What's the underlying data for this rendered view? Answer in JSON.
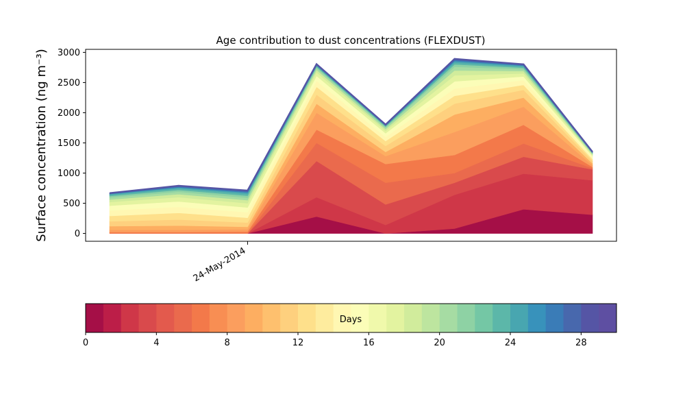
{
  "chart_data": {
    "type": "area",
    "stacked": true,
    "title": "Age contribution to dust concentrations (FLEXDUST)",
    "ylabel": "Surface concentration (ng m⁻³)",
    "xlabel": "",
    "ylim": [
      -130,
      3050
    ],
    "yticks": [
      0,
      500,
      1000,
      1500,
      2000,
      2500,
      3000
    ],
    "x_tick_labels": [
      {
        "index": 2,
        "label": "24-May-2014"
      }
    ],
    "x_count": 8,
    "series_cumulative_tops": [
      [
        0,
        0,
        0,
        280,
        0,
        80,
        400,
        310
      ],
      [
        0,
        0,
        0,
        600,
        140,
        640,
        990,
        880
      ],
      [
        0,
        0,
        0,
        1200,
        480,
        840,
        1270,
        1060
      ],
      [
        0,
        0,
        0,
        1500,
        840,
        1000,
        1490,
        1080
      ],
      [
        20,
        20,
        30,
        1720,
        1150,
        1300,
        1800,
        1100
      ],
      [
        60,
        60,
        70,
        2000,
        1280,
        1680,
        2100,
        1130
      ],
      [
        120,
        130,
        110,
        2150,
        1350,
        1970,
        2250,
        1160
      ],
      [
        200,
        230,
        180,
        2300,
        1450,
        2150,
        2380,
        1200
      ],
      [
        290,
        340,
        260,
        2430,
        1530,
        2280,
        2460,
        1230
      ],
      [
        380,
        440,
        350,
        2530,
        1600,
        2400,
        2540,
        1260
      ],
      [
        460,
        530,
        430,
        2610,
        1660,
        2520,
        2600,
        1280
      ],
      [
        520,
        600,
        500,
        2670,
        1700,
        2620,
        2650,
        1300
      ],
      [
        560,
        650,
        550,
        2710,
        1730,
        2700,
        2690,
        1310
      ],
      [
        595,
        690,
        590,
        2740,
        1755,
        2760,
        2720,
        1320
      ],
      [
        620,
        720,
        625,
        2760,
        1770,
        2800,
        2745,
        1330
      ],
      [
        640,
        745,
        655,
        2775,
        1782,
        2830,
        2765,
        1337
      ],
      [
        652,
        762,
        678,
        2787,
        1790,
        2855,
        2780,
        1342
      ],
      [
        660,
        775,
        693,
        2795,
        1796,
        2872,
        2790,
        1346
      ],
      [
        665,
        784,
        703,
        2801,
        1800,
        2884,
        2797,
        1349
      ],
      [
        668,
        790,
        710,
        2805,
        1803,
        2892,
        2802,
        1351
      ]
    ],
    "colorbar": {
      "label": "Days",
      "min": 0,
      "max": 30,
      "ticks": [
        0,
        4,
        8,
        12,
        16,
        20,
        24,
        28
      ],
      "bins": 30,
      "colors": [
        "#a50f47",
        "#bc1e48",
        "#cf3748",
        "#d94a4c",
        "#e35a4d",
        "#ea6a4d",
        "#f3794a",
        "#f88e53",
        "#fb9e5e",
        "#fdae61",
        "#fec06e",
        "#fed07e",
        "#fee08b",
        "#feec9e",
        "#fff7b2",
        "#fbfdb8",
        "#f0f9ab",
        "#e3f3a0",
        "#d1ec9c",
        "#bde59f",
        "#a6dca3",
        "#8ed2a4",
        "#74c7a5",
        "#5cb7a9",
        "#48a6b0",
        "#3892bb",
        "#3a7cb7",
        "#4868ad",
        "#5555a5",
        "#5e4fa2"
      ]
    }
  }
}
